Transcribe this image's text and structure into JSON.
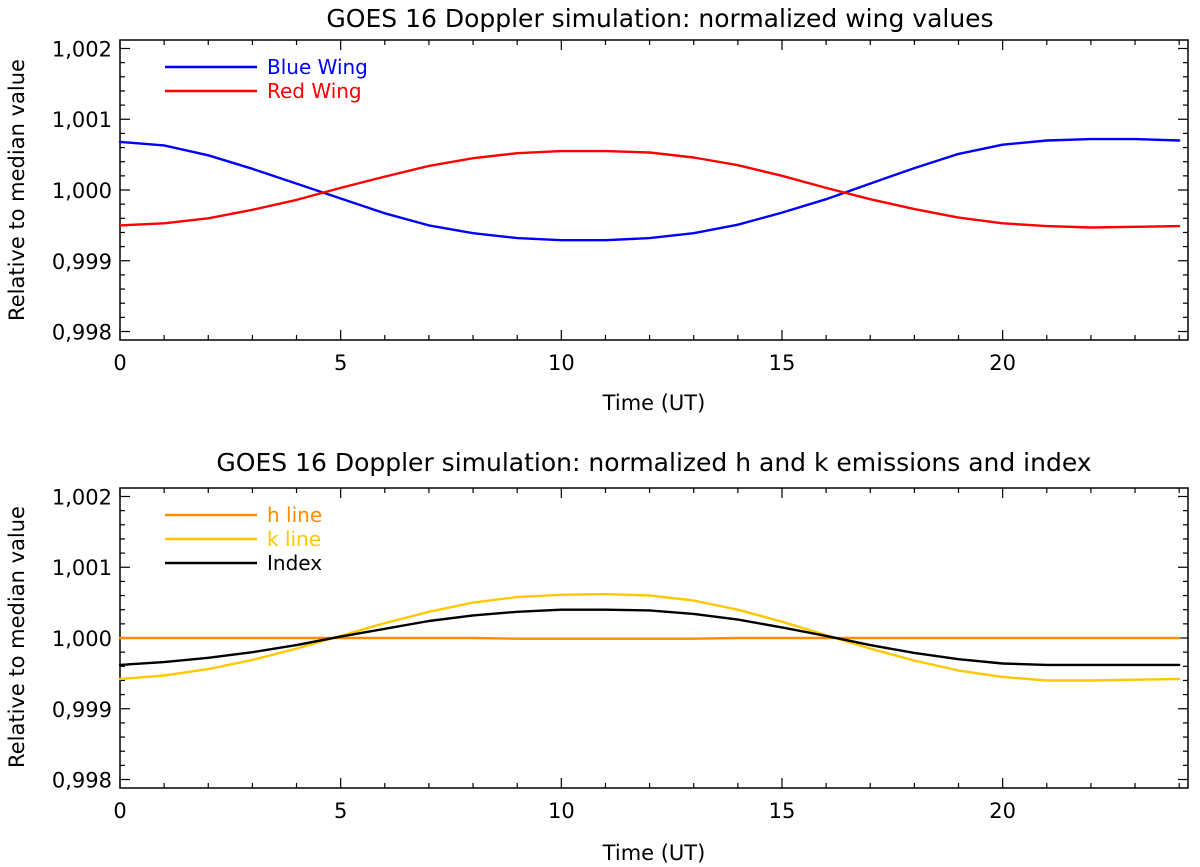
{
  "chart_data": [
    {
      "type": "line",
      "title": "GOES 16 Doppler simulation: normalized wing values",
      "xlabel": "Time (UT)",
      "ylabel": "Relative to median value",
      "xlim": [
        0,
        24.2
      ],
      "ylim": [
        0.99788,
        1.00212
      ],
      "xticks": [
        0,
        5,
        10,
        15,
        20
      ],
      "xtick_labels": [
        "0",
        "5",
        "10",
        "15",
        "20"
      ],
      "yticks": [
        0.998,
        0.999,
        1.0,
        1.001,
        1.002
      ],
      "ytick_labels": [
        "0,998",
        "0,999",
        "1,000",
        "1,001",
        "1,002"
      ],
      "legend_position": "top-left",
      "grid": false,
      "x": [
        0,
        1,
        2,
        3,
        4,
        5,
        6,
        7,
        8,
        9,
        10,
        11,
        12,
        13,
        14,
        15,
        16,
        17,
        18,
        19,
        20,
        21,
        22,
        23,
        24
      ],
      "series": [
        {
          "name": "Blue Wing",
          "color": "#0000ff",
          "values": [
            1.00068,
            1.00063,
            1.00049,
            1.0003,
            1.00009,
            0.99988,
            0.99967,
            0.9995,
            0.99939,
            0.99932,
            0.99929,
            0.99929,
            0.99932,
            0.99939,
            0.99951,
            0.99968,
            0.99987,
            1.00009,
            1.00031,
            1.00051,
            1.00064,
            1.0007,
            1.00072,
            1.00072,
            1.0007
          ]
        },
        {
          "name": "Red Wing",
          "color": "#ff0000",
          "values": [
            0.9995,
            0.99953,
            0.9996,
            0.99972,
            0.99986,
            1.00003,
            1.00019,
            1.00034,
            1.00045,
            1.00052,
            1.00055,
            1.00055,
            1.00053,
            1.00046,
            1.00035,
            1.0002,
            1.00003,
            0.99987,
            0.99973,
            0.99961,
            0.99953,
            0.99949,
            0.99947,
            0.99948,
            0.99949
          ]
        }
      ]
    },
    {
      "type": "line",
      "title": "GOES 16 Doppler simulation: normalized h and k emissions and index",
      "xlabel": "Time (UT)",
      "ylabel": "Relative to median value",
      "xlim": [
        0,
        24.2
      ],
      "ylim": [
        0.99788,
        1.00212
      ],
      "xticks": [
        0,
        5,
        10,
        15,
        20
      ],
      "xtick_labels": [
        "0",
        "5",
        "10",
        "15",
        "20"
      ],
      "yticks": [
        0.998,
        0.999,
        1.0,
        1.001,
        1.002
      ],
      "ytick_labels": [
        "0,998",
        "0,999",
        "1,000",
        "1,001",
        "1,002"
      ],
      "legend_position": "top-left",
      "grid": false,
      "x": [
        0,
        1,
        2,
        3,
        4,
        5,
        6,
        7,
        8,
        9,
        10,
        11,
        12,
        13,
        14,
        15,
        16,
        17,
        18,
        19,
        20,
        21,
        22,
        23,
        24
      ],
      "series": [
        {
          "name": "h line",
          "color": "#ff8c00",
          "values": [
            1.0,
            1.0,
            1.0,
            1.0,
            1.0,
            1.0,
            1.0,
            1.0,
            1.0,
            0.99999,
            0.99999,
            0.99999,
            0.99999,
            0.99999,
            1.0,
            1.0,
            1.0,
            1.0,
            1.0,
            1.0,
            1.0,
            1.0,
            1.0,
            1.0,
            1.0
          ]
        },
        {
          "name": "k line",
          "color": "#ffc800",
          "values": [
            0.99942,
            0.99947,
            0.99956,
            0.99969,
            0.99985,
            1.00003,
            1.00021,
            1.00037,
            1.0005,
            1.00058,
            1.00061,
            1.00062,
            1.0006,
            1.00053,
            1.0004,
            1.00023,
            1.00004,
            0.99985,
            0.99968,
            0.99954,
            0.99945,
            0.9994,
            0.9994,
            0.99941,
            0.99942
          ]
        },
        {
          "name": "Index",
          "color": "#000000",
          "values": [
            0.99962,
            0.99966,
            0.99972,
            0.9998,
            0.9999,
            1.00002,
            1.00013,
            1.00024,
            1.00032,
            1.00037,
            1.0004,
            1.0004,
            1.00039,
            1.00034,
            1.00026,
            1.00015,
            1.00003,
            0.9999,
            0.99979,
            0.9997,
            0.99964,
            0.99962,
            0.99962,
            0.99962,
            0.99962
          ]
        }
      ]
    }
  ]
}
